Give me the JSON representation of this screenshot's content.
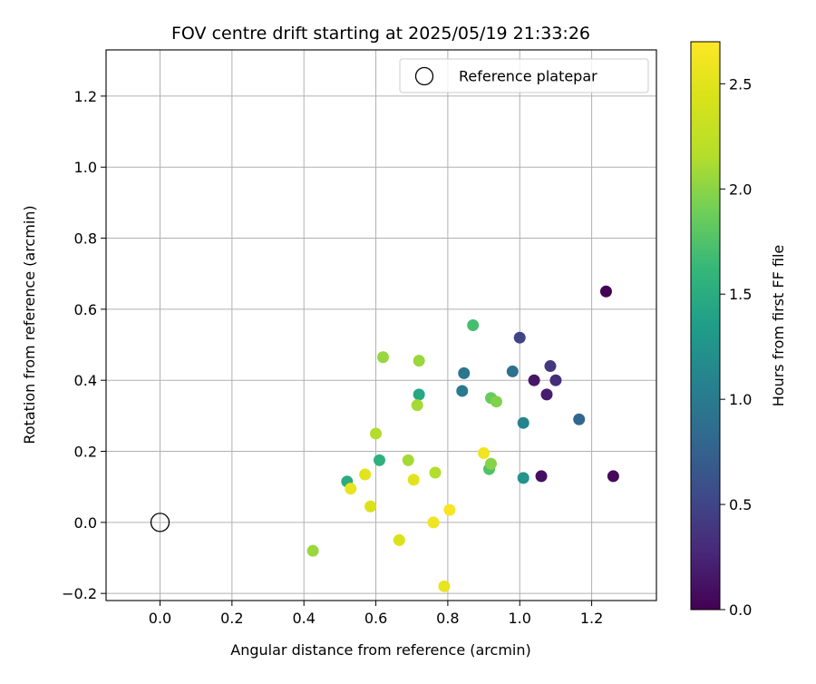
{
  "chart_data": {
    "type": "scatter",
    "title": "FOV centre drift starting at 2025/05/19 21:33:26",
    "xlabel": "Angular distance from reference (arcmin)",
    "ylabel": "Rotation from reference (arcmin)",
    "xlim": [
      -0.15,
      1.38
    ],
    "ylim": [
      -0.22,
      1.33
    ],
    "x_ticks": [
      0.0,
      0.2,
      0.4,
      0.6,
      0.8,
      1.0,
      1.2
    ],
    "x_tick_labels": [
      "0.0",
      "0.2",
      "0.4",
      "0.6",
      "0.8",
      "1.0",
      "1.2"
    ],
    "y_ticks": [
      -0.2,
      0.0,
      0.2,
      0.4,
      0.6,
      0.8,
      1.0,
      1.2
    ],
    "y_tick_labels": [
      "−0.2",
      "0.0",
      "0.2",
      "0.4",
      "0.6",
      "0.8",
      "1.0",
      "1.2"
    ],
    "grid": true,
    "legend": {
      "position": "top-right",
      "entries": [
        "Reference platepar"
      ]
    },
    "reference_point": {
      "x": 0.0,
      "y": 0.0
    },
    "colorbar": {
      "label": "Hours from first FF file",
      "colormap": "viridis",
      "range": [
        0.0,
        2.7
      ],
      "ticks": [
        0.0,
        0.5,
        1.0,
        1.5,
        2.0,
        2.5
      ],
      "tick_labels": [
        "0.0",
        "0.5",
        "1.0",
        "1.5",
        "2.0",
        "2.5"
      ]
    },
    "points": [
      {
        "x": 1.24,
        "y": 0.65,
        "c": 0.0
      },
      {
        "x": 1.26,
        "y": 0.13,
        "c": 0.05
      },
      {
        "x": 1.06,
        "y": 0.13,
        "c": 0.1
      },
      {
        "x": 1.04,
        "y": 0.4,
        "c": 0.15
      },
      {
        "x": 1.075,
        "y": 0.36,
        "c": 0.2
      },
      {
        "x": 1.1,
        "y": 0.4,
        "c": 0.3
      },
      {
        "x": 1.085,
        "y": 0.44,
        "c": 0.4
      },
      {
        "x": 1.0,
        "y": 0.52,
        "c": 0.5
      },
      {
        "x": 1.165,
        "y": 0.29,
        "c": 0.8
      },
      {
        "x": 0.98,
        "y": 0.425,
        "c": 0.9
      },
      {
        "x": 0.845,
        "y": 0.42,
        "c": 0.95
      },
      {
        "x": 0.84,
        "y": 0.37,
        "c": 1.0
      },
      {
        "x": 1.01,
        "y": 0.28,
        "c": 1.1
      },
      {
        "x": 1.01,
        "y": 0.125,
        "c": 1.25
      },
      {
        "x": 0.72,
        "y": 0.36,
        "c": 1.45
      },
      {
        "x": 0.52,
        "y": 0.115,
        "c": 1.5
      },
      {
        "x": 0.61,
        "y": 0.175,
        "c": 1.55
      },
      {
        "x": 0.87,
        "y": 0.555,
        "c": 1.7
      },
      {
        "x": 0.915,
        "y": 0.15,
        "c": 1.75
      },
      {
        "x": 0.92,
        "y": 0.35,
        "c": 1.85
      },
      {
        "x": 0.935,
        "y": 0.34,
        "c": 1.95
      },
      {
        "x": 0.92,
        "y": 0.165,
        "c": 1.98
      },
      {
        "x": 0.62,
        "y": 0.465,
        "c": 2.05
      },
      {
        "x": 0.72,
        "y": 0.455,
        "c": 2.05
      },
      {
        "x": 0.715,
        "y": 0.33,
        "c": 2.1
      },
      {
        "x": 0.69,
        "y": 0.175,
        "c": 2.1
      },
      {
        "x": 0.425,
        "y": -0.08,
        "c": 2.05
      },
      {
        "x": 0.6,
        "y": 0.25,
        "c": 2.15
      },
      {
        "x": 0.765,
        "y": 0.14,
        "c": 2.15
      },
      {
        "x": 0.57,
        "y": 0.135,
        "c": 2.5
      },
      {
        "x": 0.585,
        "y": 0.045,
        "c": 2.45
      },
      {
        "x": 0.53,
        "y": 0.095,
        "c": 2.55
      },
      {
        "x": 0.705,
        "y": 0.12,
        "c": 2.5
      },
      {
        "x": 0.665,
        "y": -0.05,
        "c": 2.45
      },
      {
        "x": 0.76,
        "y": 0.0,
        "c": 2.6
      },
      {
        "x": 0.805,
        "y": 0.035,
        "c": 2.65
      },
      {
        "x": 0.9,
        "y": 0.195,
        "c": 2.6
      },
      {
        "x": 0.79,
        "y": -0.18,
        "c": 2.55
      }
    ]
  }
}
